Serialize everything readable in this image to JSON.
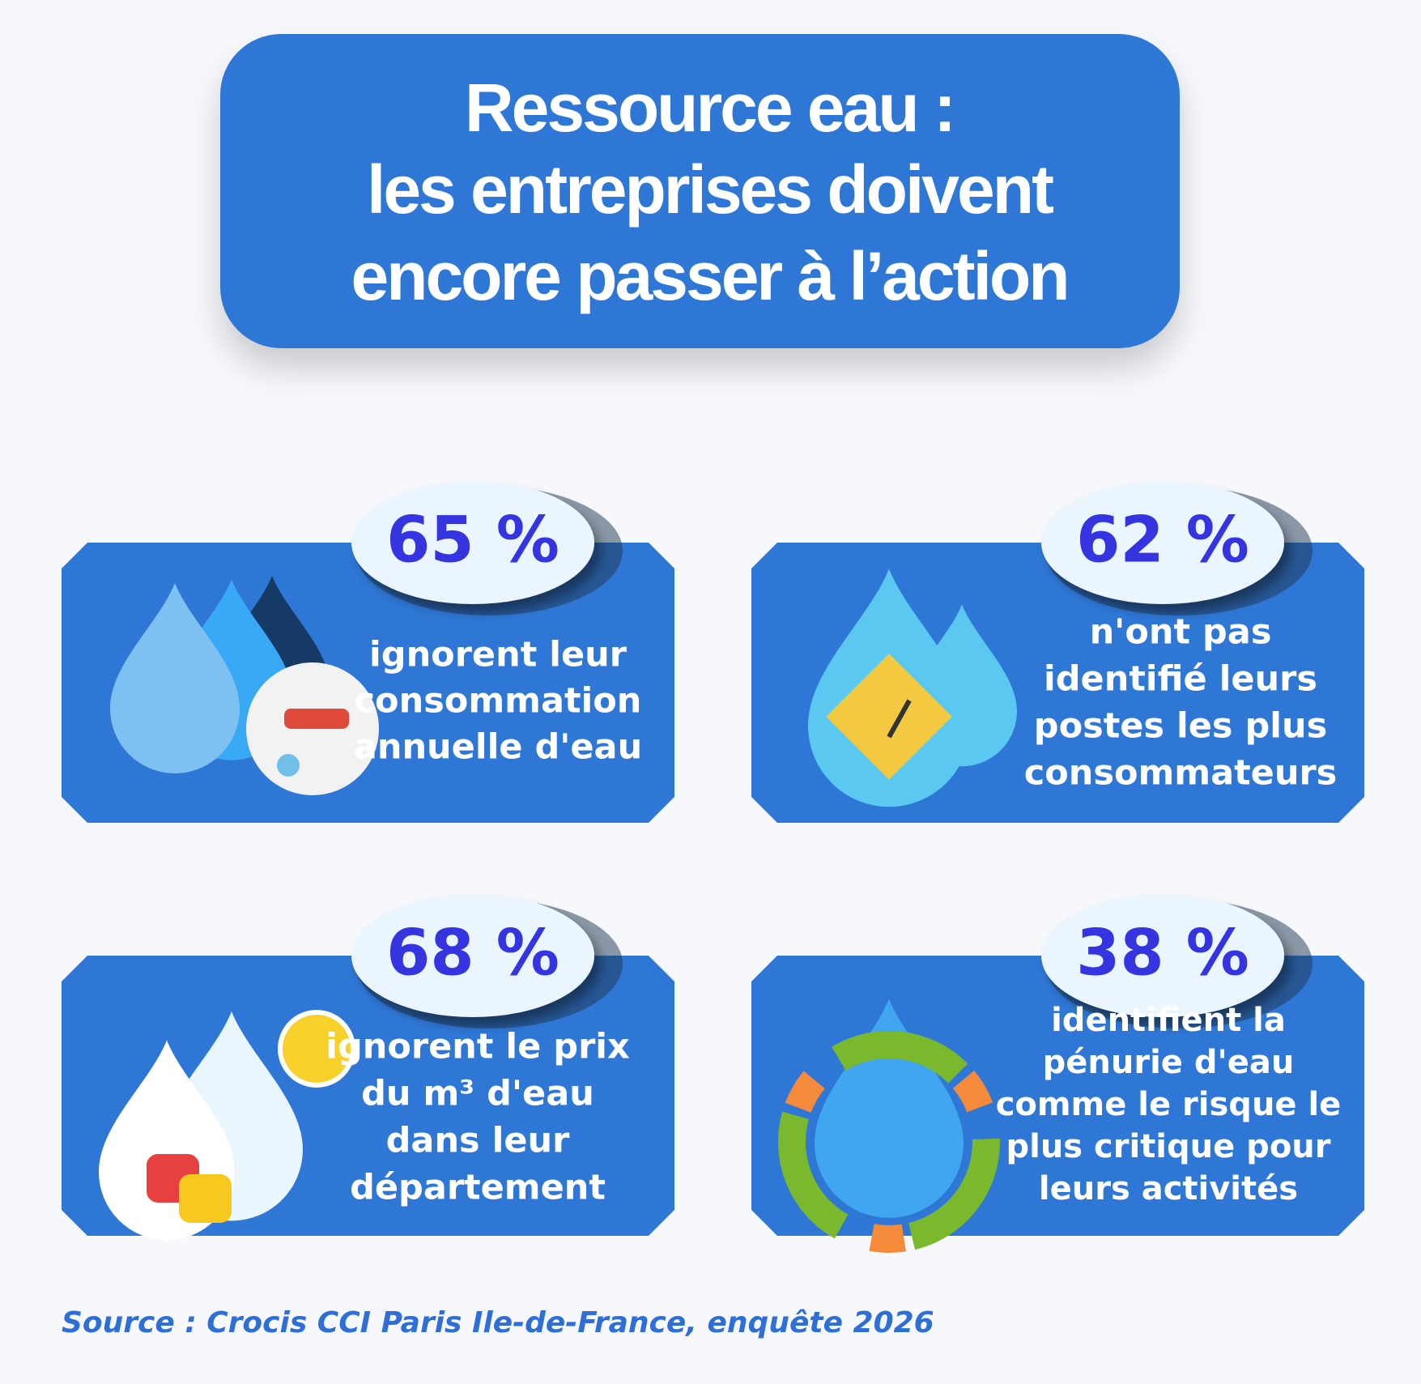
{
  "header": {
    "title_lines": [
      "Ressource eau :",
      "les entreprises doivent",
      "encore passer à l’action"
    ]
  },
  "cards": [
    {
      "percent": "65 %",
      "lines": [
        "ignorent leur",
        "consommation",
        "annuelle d'eau"
      ]
    },
    {
      "percent": "62 %",
      "lines": [
        "n'ont pas",
        "identifié leurs",
        "postes les plus",
        "consommateurs"
      ]
    },
    {
      "percent": "68 %",
      "lines": [
        "ignorent le prix",
        "du m³ d'eau",
        "dans leur",
        "département"
      ]
    },
    {
      "percent": "38 %",
      "lines": [
        "identifient la",
        "pénurie d'eau",
        "comme le risque le",
        "plus critique pour",
        "leurs activités"
      ]
    }
  ],
  "source": "Source : Crocis CCI Paris Ile-de-France, enquête 2026"
}
